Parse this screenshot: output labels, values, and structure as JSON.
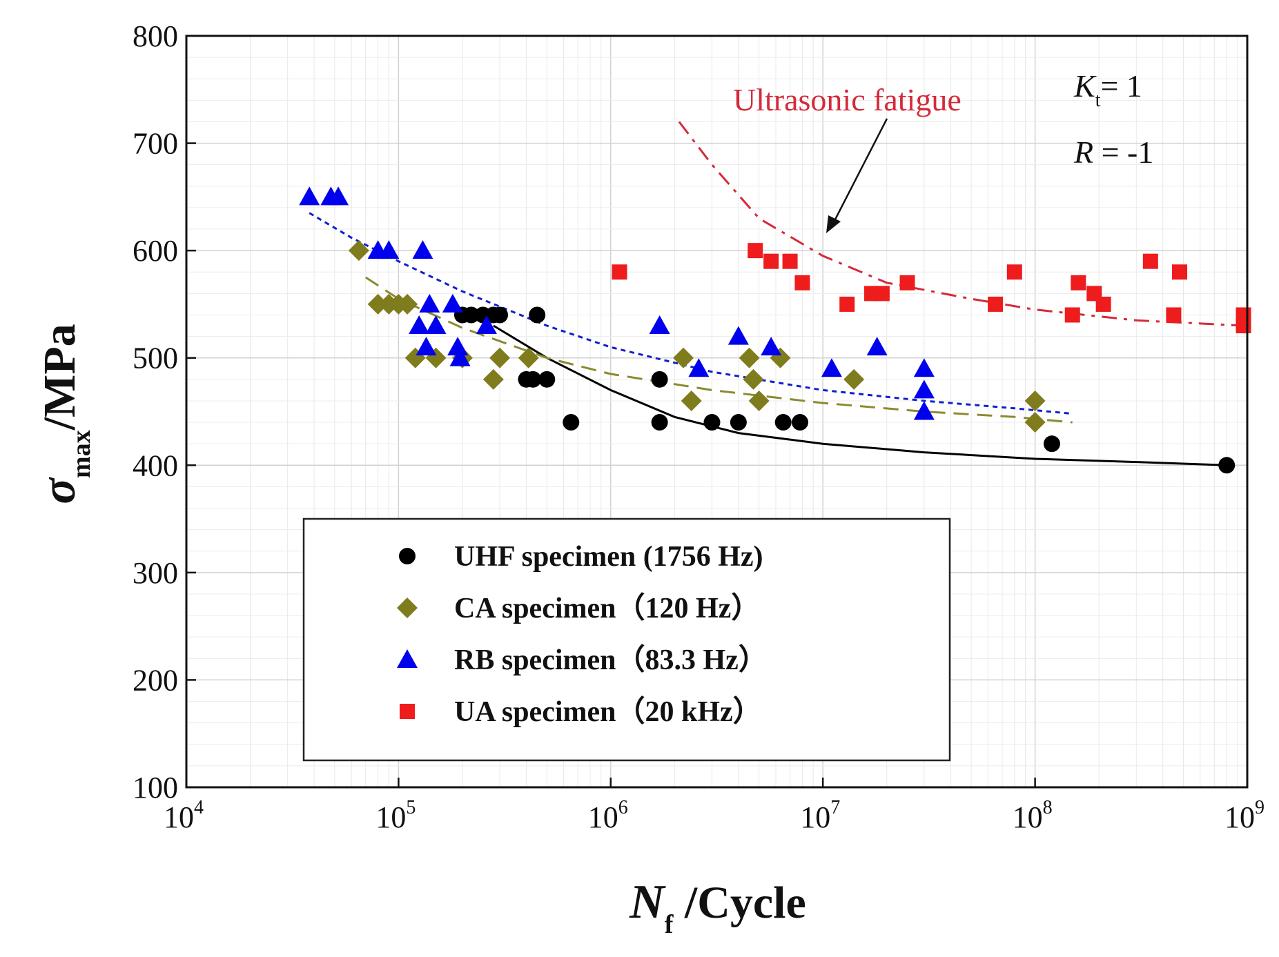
{
  "chart_data": {
    "type": "scatter",
    "x_scale": "log",
    "xlim": [
      10000,
      1000000000
    ],
    "ylim": [
      100,
      800
    ],
    "y_ticks": [
      100,
      200,
      300,
      400,
      500,
      600,
      700,
      800
    ],
    "x_ticks": [
      {
        "base": "10",
        "exp": "4"
      },
      {
        "base": "10",
        "exp": "5"
      },
      {
        "base": "10",
        "exp": "6"
      },
      {
        "base": "10",
        "exp": "7"
      },
      {
        "base": "10",
        "exp": "8"
      },
      {
        "base": "10",
        "exp": "9"
      }
    ],
    "xlabel": {
      "symbol": "N",
      "sub": "f",
      "unit": " /Cycle"
    },
    "ylabel": {
      "symbol": "σ",
      "sub": "max",
      "unit": "/MPa"
    },
    "grid": true,
    "legend_position": "bottom-left",
    "annotations": {
      "kt_symbol": "K",
      "kt_sub": "t",
      "kt_value": "=  1",
      "r_symbol": "R",
      "r_value": " = -1",
      "ultrasonic_label": "Ultrasonic fatigue"
    },
    "series": [
      {
        "name": "UHF specimen (1756 Hz)",
        "marker": "circle",
        "color": "#000000",
        "points": [
          [
            200000,
            540
          ],
          [
            220000,
            540
          ],
          [
            250000,
            540
          ],
          [
            280000,
            540
          ],
          [
            300000,
            540
          ],
          [
            450000,
            540
          ],
          [
            400000,
            480
          ],
          [
            430000,
            480
          ],
          [
            500000,
            480
          ],
          [
            650000,
            440
          ],
          [
            1700000,
            480
          ],
          [
            1700000,
            440
          ],
          [
            3000000,
            440
          ],
          [
            4000000,
            440
          ],
          [
            6500000,
            440
          ],
          [
            7800000,
            440
          ],
          [
            120000000,
            420
          ],
          [
            800000000,
            400
          ]
        ],
        "fit": {
          "style": "solid",
          "color": "#000000",
          "points": [
            [
              280000,
              530
            ],
            [
              500000,
              500
            ],
            [
              1000000,
              470
            ],
            [
              2000000,
              445
            ],
            [
              4000000,
              430
            ],
            [
              10000000,
              420
            ],
            [
              30000000,
              412
            ],
            [
              100000000,
              406
            ],
            [
              300000000,
              403
            ],
            [
              800000000,
              400
            ]
          ]
        }
      },
      {
        "name": "CA specimen（120 Hz）",
        "marker": "diamond",
        "color": "#7f7c1e",
        "points": [
          [
            65000,
            600
          ],
          [
            80000,
            550
          ],
          [
            90000,
            550
          ],
          [
            100000,
            550
          ],
          [
            110000,
            550
          ],
          [
            120000,
            500
          ],
          [
            150000,
            500
          ],
          [
            200000,
            500
          ],
          [
            300000,
            500
          ],
          [
            280000,
            480
          ],
          [
            410000,
            500
          ],
          [
            2200000,
            500
          ],
          [
            2400000,
            460
          ],
          [
            4500000,
            500
          ],
          [
            4700000,
            480
          ],
          [
            5000000,
            460
          ],
          [
            6300000,
            500
          ],
          [
            14000000,
            480
          ],
          [
            100000000,
            460
          ],
          [
            100000000,
            440
          ]
        ],
        "fit": {
          "style": "dashed",
          "color": "#8c8a30",
          "points": [
            [
              70000,
              575
            ],
            [
              100000,
              555
            ],
            [
              200000,
              528
            ],
            [
              500000,
              500
            ],
            [
              1000000,
              485
            ],
            [
              3000000,
              470
            ],
            [
              10000000,
              458
            ],
            [
              30000000,
              450
            ],
            [
              80000000,
              445
            ],
            [
              150000000,
              440
            ]
          ]
        }
      },
      {
        "name": "RB specimen（83.3 Hz）",
        "marker": "triangle",
        "color": "#0000ee",
        "points": [
          [
            38000,
            650
          ],
          [
            48000,
            650
          ],
          [
            52000,
            650
          ],
          [
            80000,
            600
          ],
          [
            90000,
            600
          ],
          [
            130000,
            600
          ],
          [
            140000,
            550
          ],
          [
            180000,
            550
          ],
          [
            125000,
            530
          ],
          [
            150000,
            530
          ],
          [
            260000,
            530
          ],
          [
            135000,
            510
          ],
          [
            190000,
            510
          ],
          [
            195000,
            500
          ],
          [
            1700000,
            530
          ],
          [
            2600000,
            490
          ],
          [
            4000000,
            520
          ],
          [
            5700000,
            510
          ],
          [
            11000000,
            490
          ],
          [
            18000000,
            510
          ],
          [
            30000000,
            490
          ],
          [
            30000000,
            470
          ],
          [
            30000000,
            450
          ]
        ],
        "fit": {
          "style": "dotted",
          "color": "#1020cc",
          "points": [
            [
              38000,
              635
            ],
            [
              60000,
              612
            ],
            [
              100000,
              590
            ],
            [
              200000,
              562
            ],
            [
              500000,
              530
            ],
            [
              1000000,
              510
            ],
            [
              3000000,
              487
            ],
            [
              10000000,
              470
            ],
            [
              30000000,
              460
            ],
            [
              80000000,
              453
            ],
            [
              150000000,
              448
            ]
          ]
        }
      },
      {
        "name": "UA specimen（20 kHz）",
        "marker": "square",
        "color": "#ee1c1c",
        "points": [
          [
            1100000,
            580
          ],
          [
            4800000,
            600
          ],
          [
            5700000,
            590
          ],
          [
            7000000,
            590
          ],
          [
            8000000,
            570
          ],
          [
            13000000,
            550
          ],
          [
            17000000,
            560
          ],
          [
            19000000,
            560
          ],
          [
            25000000,
            570
          ],
          [
            65000000,
            550
          ],
          [
            80000000,
            580
          ],
          [
            150000000,
            540
          ],
          [
            160000000,
            570
          ],
          [
            190000000,
            560
          ],
          [
            210000000,
            550
          ],
          [
            350000000,
            590
          ],
          [
            450000000,
            540
          ],
          [
            480000000,
            580
          ],
          [
            960000000,
            540
          ],
          [
            960000000,
            530
          ]
        ],
        "fit": {
          "style": "dashdot",
          "color": "#d42a3a",
          "points": [
            [
              2100000,
              720
            ],
            [
              3000000,
              680
            ],
            [
              5000000,
              630
            ],
            [
              10000000,
              595
            ],
            [
              20000000,
              570
            ],
            [
              50000000,
              555
            ],
            [
              100000000,
              545
            ],
            [
              300000000,
              535
            ],
            [
              960000000,
              530
            ]
          ]
        }
      }
    ]
  }
}
